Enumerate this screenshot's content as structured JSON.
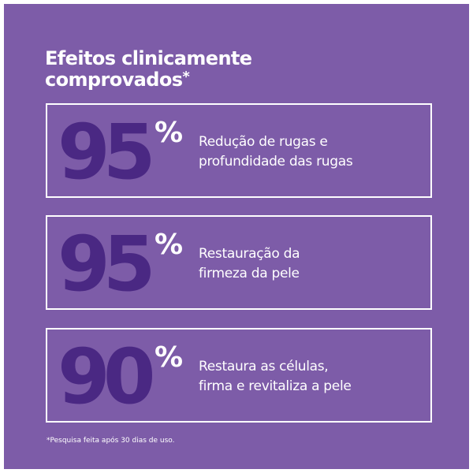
{
  "title": {
    "line1": "Efeitos clinicamente",
    "line2": "comprovados",
    "marker": "*"
  },
  "stats": [
    {
      "number": "95",
      "percent": "%",
      "text_line1": "Redução de rugas e",
      "text_line2": "profundidade das rugas"
    },
    {
      "number": "95",
      "percent": "%",
      "text_line1": "Restauração da",
      "text_line2": "firmeza da pele"
    },
    {
      "number": "90",
      "percent": "%",
      "text_line1": "Restaura as células,",
      "text_line2": "firma e revitaliza a pele"
    }
  ],
  "footnote": "*Pesquisa feita após 30 dias de uso.",
  "colors": {
    "background": "#7d5ca8",
    "number": "#4a2883",
    "text": "#ffffff"
  }
}
